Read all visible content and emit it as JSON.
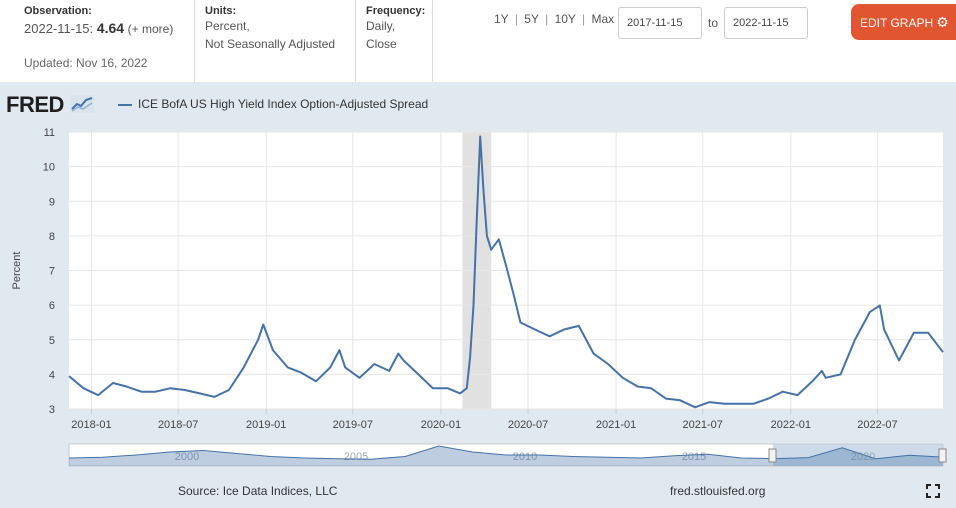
{
  "header": {
    "observation_label": "Observation:",
    "observation_date": "2022-11-15:",
    "observation_value": "4.64",
    "observation_change": "(+ more)",
    "updated": "Updated: Nov 16, 2022",
    "units_label": "Units:",
    "units_line1": "Percent,",
    "units_line2": "Not Seasonally Adjusted",
    "frequency_label": "Frequency:",
    "frequency_line1": "Daily,",
    "frequency_line2": "Close",
    "range_1y": "1Y",
    "range_5y": "5Y",
    "range_10y": "10Y",
    "range_max": "Max",
    "range_sep": "|",
    "start_date": "2017-11-15",
    "to_label": "to",
    "end_date": "2022-11-15",
    "edit_button": "EDIT GRAPH"
  },
  "brand": {
    "logo": "FRED"
  },
  "footer": {
    "source": "Source: Ice Data Indices, LLC",
    "url": "fred.stlouisfed.org"
  },
  "colors": {
    "series": "#4572a7",
    "recession": "#e1e1e1",
    "accent": "#e15530",
    "chart_bg": "#e1e9f0"
  },
  "chart_data": {
    "type": "line",
    "series": [
      {
        "name": "ICE BofA US High Yield Index Option-Adjusted Spread",
        "x": [
          "2017-11-15",
          "2017-12-15",
          "2018-01-15",
          "2018-02-15",
          "2018-03-15",
          "2018-04-15",
          "2018-05-15",
          "2018-06-15",
          "2018-07-15",
          "2018-08-15",
          "2018-09-15",
          "2018-10-15",
          "2018-11-15",
          "2018-12-15",
          "2018-12-26",
          "2019-01-15",
          "2019-02-15",
          "2019-03-15",
          "2019-04-15",
          "2019-05-15",
          "2019-06-03",
          "2019-06-15",
          "2019-07-15",
          "2019-08-15",
          "2019-09-15",
          "2019-10-04",
          "2019-10-15",
          "2019-11-15",
          "2019-12-15",
          "2020-01-15",
          "2020-02-10",
          "2020-02-24",
          "2020-03-02",
          "2020-03-09",
          "2020-03-16",
          "2020-03-23",
          "2020-03-30",
          "2020-04-06",
          "2020-04-15",
          "2020-05-01",
          "2020-05-15",
          "2020-06-01",
          "2020-06-15",
          "2020-07-15",
          "2020-08-15",
          "2020-09-15",
          "2020-10-15",
          "2020-11-15",
          "2020-12-15",
          "2021-01-15",
          "2021-02-15",
          "2021-03-15",
          "2021-04-15",
          "2021-05-15",
          "2021-06-15",
          "2021-07-15",
          "2021-08-15",
          "2021-09-15",
          "2021-10-15",
          "2021-11-15",
          "2021-12-15",
          "2022-01-15",
          "2022-02-15",
          "2022-03-07",
          "2022-03-15",
          "2022-04-15",
          "2022-05-15",
          "2022-06-15",
          "2022-07-06",
          "2022-07-15",
          "2022-08-15",
          "2022-09-15",
          "2022-10-15",
          "2022-11-15"
        ],
        "values": [
          3.95,
          3.6,
          3.4,
          3.75,
          3.65,
          3.5,
          3.5,
          3.6,
          3.55,
          3.45,
          3.35,
          3.55,
          4.2,
          5.0,
          5.44,
          4.7,
          4.2,
          4.05,
          3.8,
          4.2,
          4.7,
          4.2,
          3.9,
          4.3,
          4.1,
          4.6,
          4.4,
          4.0,
          3.6,
          3.6,
          3.45,
          3.6,
          4.5,
          6.0,
          8.5,
          10.87,
          9.3,
          8.0,
          7.6,
          7.9,
          7.2,
          6.3,
          5.5,
          5.3,
          5.1,
          5.3,
          5.4,
          4.6,
          4.3,
          3.9,
          3.65,
          3.6,
          3.3,
          3.25,
          3.05,
          3.2,
          3.15,
          3.15,
          3.15,
          3.3,
          3.5,
          3.4,
          3.8,
          4.1,
          3.9,
          4.0,
          5.0,
          5.8,
          5.99,
          5.3,
          4.4,
          5.2,
          5.2,
          4.64
        ]
      }
    ],
    "y_label": "Percent",
    "ylim": [
      3,
      11
    ],
    "y_ticks": [
      "3",
      "4",
      "5",
      "6",
      "7",
      "8",
      "9",
      "10",
      "11"
    ],
    "x_ticks": [
      "2018-01",
      "2018-07",
      "2019-01",
      "2019-07",
      "2020-01",
      "2020-07",
      "2021-01",
      "2021-07",
      "2022-01",
      "2022-07"
    ],
    "xlim": [
      "2017-11-15",
      "2022-11-15"
    ],
    "recession": [
      "2020-02-15",
      "2020-04-15"
    ],
    "navigator_labels": [
      "2000",
      "2005",
      "2010",
      "2015",
      "2020"
    ],
    "grid": true,
    "legend_position": "top-left"
  }
}
